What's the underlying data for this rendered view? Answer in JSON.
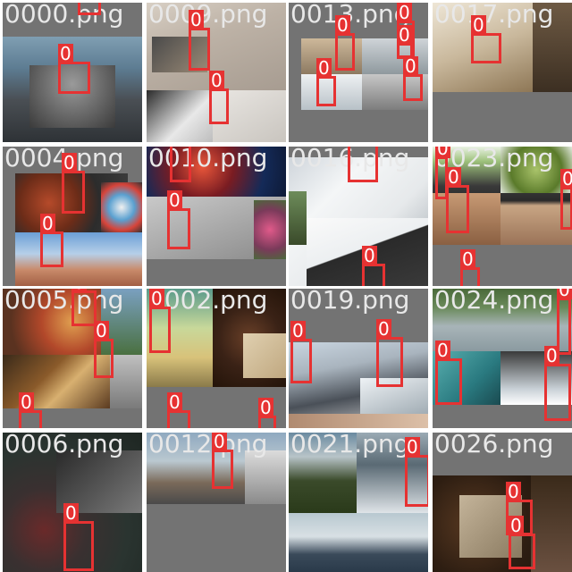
{
  "colors": {
    "tile_background": "#737373",
    "box": "#e63232",
    "label_text": "#ffffff",
    "filename_text": "#e8e8e8"
  },
  "tiles": [
    {
      "filename": "0000.png",
      "labels": [
        "0",
        "0"
      ]
    },
    {
      "filename": "0009.png",
      "labels": [
        "0",
        "0",
        "0"
      ]
    },
    {
      "filename": "0013.png",
      "labels": [
        "0",
        "0",
        "0",
        "0",
        "0"
      ]
    },
    {
      "filename": "0017.png",
      "labels": [
        "0"
      ]
    },
    {
      "filename": "0004.png",
      "labels": [
        "0",
        "0"
      ]
    },
    {
      "filename": "0010.png",
      "labels": [
        "0",
        "0"
      ]
    },
    {
      "filename": "0016.png",
      "labels": [
        "0",
        "0"
      ]
    },
    {
      "filename": "0023.png",
      "labels": [
        "0",
        "0",
        "0",
        "0"
      ]
    },
    {
      "filename": "0005.png",
      "labels": [
        "0",
        "0",
        "0"
      ]
    },
    {
      "filename": "0002.png",
      "labels": [
        "0",
        "0",
        "0"
      ]
    },
    {
      "filename": "0019.png",
      "labels": [
        "0",
        "0"
      ]
    },
    {
      "filename": "0024.png",
      "labels": [
        "0",
        "0",
        "0"
      ]
    },
    {
      "filename": "0006.png",
      "labels": [
        "0"
      ]
    },
    {
      "filename": "0012.png",
      "labels": [
        "0"
      ]
    },
    {
      "filename": "0021.png",
      "labels": [
        "0"
      ]
    },
    {
      "filename": "0026.png",
      "labels": [
        "0",
        "0"
      ]
    }
  ]
}
